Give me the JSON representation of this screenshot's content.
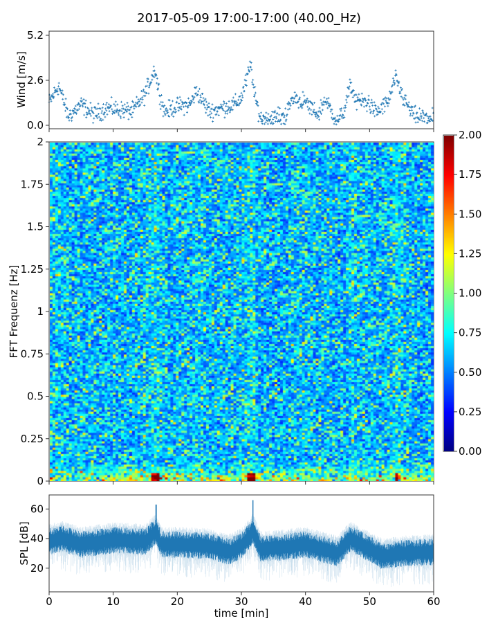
{
  "chart_data": [
    {
      "type": "scatter",
      "title": "2017-05-09 17:00-17:00 (40.00_Hz)",
      "ylabel": "Wind [m/s]",
      "xlim": [
        0,
        60
      ],
      "ylim": [
        -0.2,
        5.44
      ],
      "yticks": [
        "0.0",
        "2.6",
        "5.2"
      ],
      "ytick_values": [
        0,
        2.6,
        5.2
      ],
      "color": "#1f77b4",
      "trend_x": [
        0,
        1.5,
        3,
        5,
        7,
        9,
        11,
        13,
        15,
        16.5,
        17,
        18,
        20,
        22,
        23,
        25,
        27,
        29,
        30,
        31.5,
        32,
        33,
        35,
        37,
        38,
        40,
        42,
        43,
        45,
        46,
        47,
        48,
        50,
        51,
        53,
        54,
        55.5,
        57,
        60
      ],
      "trend_y": [
        1.3,
        2.3,
        0.5,
        1.2,
        0.6,
        1.0,
        0.9,
        0.8,
        1.8,
        3.3,
        2.2,
        0.8,
        1.1,
        1.2,
        2.0,
        0.8,
        1.0,
        1.2,
        1.6,
        3.5,
        1.8,
        0.4,
        0.4,
        0.6,
        1.6,
        1.3,
        0.6,
        1.5,
        0.2,
        0.8,
        2.3,
        1.4,
        1.3,
        0.7,
        1.4,
        2.7,
        1.4,
        0.5,
        0.4
      ]
    },
    {
      "type": "heatmap",
      "ylabel": "FFT Frequenz [Hz]",
      "xlim": [
        0,
        60
      ],
      "ylim": [
        0,
        2
      ],
      "colormap": "jet",
      "clim": [
        0,
        2
      ],
      "yticks": [
        "0",
        "0.25",
        "0.5",
        "0.75",
        "1",
        "1.25",
        "1.5",
        "1.75",
        "2"
      ],
      "ytick_values": [
        0,
        0.25,
        0.5,
        0.75,
        1,
        1.25,
        1.5,
        1.75,
        2
      ],
      "time_bins": 60,
      "freq_bins": 160,
      "colorbar_ticks": [
        "0.00",
        "0.25",
        "0.50",
        "0.75",
        "1.00",
        "1.25",
        "1.50",
        "1.75",
        "2.00"
      ],
      "colorbar_values": [
        0,
        0.25,
        0.5,
        0.75,
        1,
        1.25,
        1.5,
        1.75,
        2
      ]
    },
    {
      "type": "line",
      "xlabel": "time [min]",
      "ylabel": "SPL [dB]",
      "xlim": [
        0,
        60
      ],
      "ylim": [
        4,
        69.5
      ],
      "color": "#1f77b4",
      "xticks": [
        "0",
        "10",
        "20",
        "30",
        "40",
        "50",
        "60"
      ],
      "xtick_values": [
        0,
        10,
        20,
        30,
        40,
        50,
        60
      ],
      "yticks": [
        "20",
        "40",
        "60"
      ],
      "ytick_values": [
        20,
        40,
        60
      ],
      "mean_x": [
        0,
        2,
        5,
        10,
        15,
        16.7,
        17.5,
        20,
        25,
        28,
        30,
        31.8,
        33,
        36,
        40,
        45,
        47,
        50,
        52,
        55,
        60
      ],
      "mean_y": [
        38,
        40,
        36,
        39,
        38,
        45,
        36,
        36,
        35,
        31,
        35,
        45,
        33,
        34,
        36,
        30,
        40,
        33,
        28,
        30,
        31
      ],
      "spikes": [
        {
          "x": 16.7,
          "y": 63
        },
        {
          "x": 31.8,
          "y": 66
        }
      ]
    }
  ]
}
